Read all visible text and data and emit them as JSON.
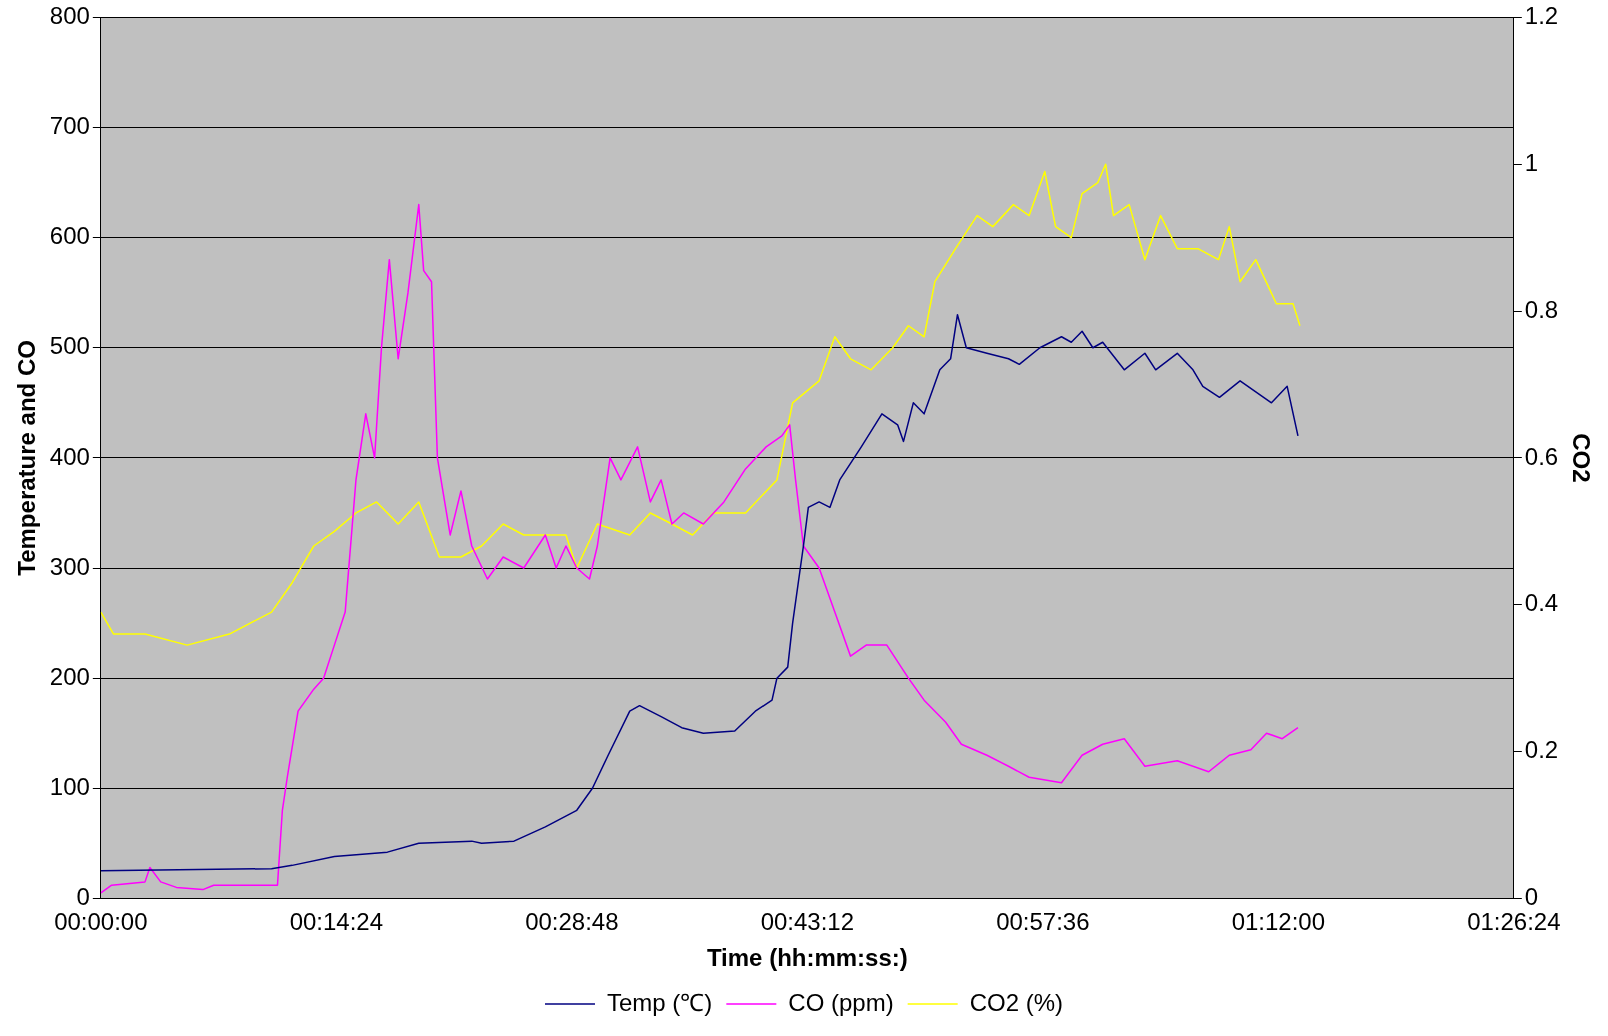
{
  "chart_data": {
    "type": "line",
    "xlabel": "Time (hh:mm:ss:)",
    "ylabel": "Temperature and CO",
    "y2label": "CO2",
    "xlim": [
      0,
      1.44
    ],
    "xticks": [
      {
        "value": 0,
        "label": "00:00:00"
      },
      {
        "value": 0.24,
        "label": "00:14:24"
      },
      {
        "value": 0.48,
        "label": "00:28:48"
      },
      {
        "value": 0.72,
        "label": "00:43:12"
      },
      {
        "value": 0.96,
        "label": "00:57:36"
      },
      {
        "value": 1.2,
        "label": "01:12:00"
      },
      {
        "value": 1.44,
        "label": "01:26:24"
      }
    ],
    "ylim": [
      0,
      800
    ],
    "yticks": [
      0,
      100,
      200,
      300,
      400,
      500,
      600,
      700,
      800
    ],
    "y2lim": [
      0,
      1.2
    ],
    "y2ticks": [
      0,
      0.2,
      0.4,
      0.6,
      0.8,
      1,
      1.2
    ],
    "grid": "y",
    "legend": "bottom",
    "marker": "none",
    "line_style": "solid",
    "series": [
      {
        "name": "Temp (℃)",
        "color": "#000080",
        "x": [
          0,
          0.174,
          0.195,
          0.238,
          0.292,
          0.324,
          0.378,
          0.388,
          0.421,
          0.453,
          0.485,
          0.501,
          0.517,
          0.539,
          0.549,
          0.571,
          0.592,
          0.614,
          0.646,
          0.667,
          0.684,
          0.689,
          0.7,
          0.705,
          0.716,
          0.721,
          0.732,
          0.743,
          0.753,
          0.775,
          0.796,
          0.812,
          0.818,
          0.828,
          0.839,
          0.855,
          0.866,
          0.873,
          0.882,
          0.903,
          0.925,
          0.936,
          0.957,
          0.979,
          0.989,
          1.0,
          1.011,
          1.021,
          1.043,
          1.064,
          1.075,
          1.097,
          1.113,
          1.123,
          1.14,
          1.161,
          1.177,
          1.193,
          1.209,
          1.22
        ],
        "values": [
          25,
          27,
          30,
          38,
          42,
          50,
          52,
          50,
          52,
          65,
          80,
          100,
          130,
          170,
          175,
          165,
          155,
          150,
          152,
          170,
          180,
          200,
          210,
          250,
          320,
          355,
          360,
          355,
          380,
          410,
          440,
          430,
          415,
          450,
          440,
          480,
          490,
          530,
          500,
          495,
          490,
          485,
          500,
          510,
          505,
          515,
          500,
          505,
          480,
          495,
          480,
          495,
          480,
          465,
          455,
          470,
          460,
          450,
          465,
          420
        ]
      },
      {
        "name": "CO (ppm)",
        "color": "#ff00ff",
        "x": [
          0,
          0.011,
          0.045,
          0.05,
          0.061,
          0.077,
          0.104,
          0.115,
          0.131,
          0.18,
          0.185,
          0.19,
          0.201,
          0.217,
          0.227,
          0.238,
          0.249,
          0.26,
          0.27,
          0.279,
          0.286,
          0.294,
          0.303,
          0.313,
          0.324,
          0.329,
          0.337,
          0.343,
          0.356,
          0.367,
          0.378,
          0.394,
          0.41,
          0.431,
          0.453,
          0.464,
          0.474,
          0.485,
          0.498,
          0.506,
          0.519,
          0.53,
          0.547,
          0.56,
          0.571,
          0.582,
          0.594,
          0.614,
          0.635,
          0.657,
          0.678,
          0.694,
          0.702,
          0.708,
          0.716,
          0.732,
          0.748,
          0.764,
          0.78,
          0.801,
          0.823,
          0.839,
          0.861,
          0.877,
          0.903,
          0.925,
          0.946,
          0.979,
          1.0,
          1.021,
          1.043,
          1.064,
          1.097,
          1.129,
          1.15,
          1.172,
          1.188,
          1.204,
          1.22
        ],
        "values": [
          5,
          12,
          15,
          28,
          15,
          10,
          8,
          12,
          12,
          12,
          80,
          110,
          170,
          190,
          200,
          230,
          260,
          380,
          440,
          400,
          500,
          580,
          490,
          550,
          630,
          570,
          560,
          400,
          330,
          370,
          320,
          290,
          310,
          300,
          330,
          300,
          320,
          300,
          290,
          320,
          400,
          380,
          410,
          360,
          380,
          340,
          350,
          340,
          360,
          390,
          410,
          420,
          430,
          380,
          320,
          300,
          260,
          220,
          230,
          230,
          200,
          180,
          160,
          140,
          130,
          120,
          110,
          105,
          130,
          140,
          145,
          120,
          125,
          115,
          130,
          135,
          150,
          145,
          155
        ]
      },
      {
        "name": "CO2 (%)",
        "color": "#ffff00",
        "axis": "y2",
        "x": [
          0,
          0.013,
          0.045,
          0.088,
          0.131,
          0.174,
          0.195,
          0.217,
          0.238,
          0.26,
          0.281,
          0.303,
          0.324,
          0.345,
          0.367,
          0.388,
          0.41,
          0.431,
          0.453,
          0.474,
          0.485,
          0.506,
          0.539,
          0.56,
          0.582,
          0.603,
          0.624,
          0.657,
          0.689,
          0.705,
          0.732,
          0.748,
          0.764,
          0.785,
          0.807,
          0.823,
          0.839,
          0.85,
          0.871,
          0.893,
          0.909,
          0.93,
          0.946,
          0.962,
          0.973,
          0.989,
          1.0,
          1.016,
          1.024,
          1.032,
          1.048,
          1.064,
          1.08,
          1.097,
          1.118,
          1.139,
          1.15,
          1.161,
          1.177,
          1.198,
          1.215,
          1.222
        ],
        "values": [
          0.39,
          0.36,
          0.36,
          0.345,
          0.36,
          0.39,
          0.43,
          0.48,
          0.5,
          0.525,
          0.54,
          0.51,
          0.54,
          0.465,
          0.465,
          0.48,
          0.51,
          0.495,
          0.495,
          0.495,
          0.45,
          0.51,
          0.495,
          0.525,
          0.51,
          0.495,
          0.525,
          0.525,
          0.57,
          0.675,
          0.705,
          0.765,
          0.735,
          0.72,
          0.75,
          0.78,
          0.765,
          0.84,
          0.885,
          0.93,
          0.915,
          0.945,
          0.93,
          0.99,
          0.915,
          0.9,
          0.96,
          0.975,
          1.0,
          0.93,
          0.945,
          0.87,
          0.93,
          0.885,
          0.885,
          0.87,
          0.915,
          0.84,
          0.87,
          0.81,
          0.81,
          0.78
        ]
      }
    ]
  }
}
